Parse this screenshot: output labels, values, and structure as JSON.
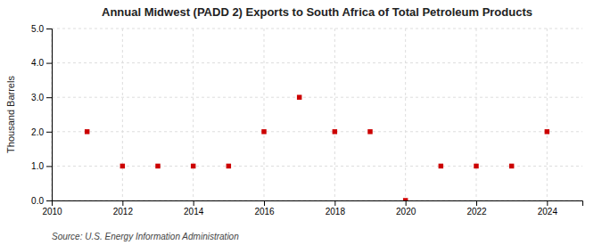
{
  "chart_data": {
    "type": "scatter",
    "title": "Annual Midwest (PADD 2) Exports to South Africa of Total Petroleum Products",
    "y_label": "Thousand Barrels",
    "source": "Source: U.S. Energy Information Administration",
    "x": [
      2011,
      2012,
      2013,
      2014,
      2015,
      2016,
      2017,
      2018,
      2019,
      2020,
      2021,
      2022,
      2023,
      2024
    ],
    "values": [
      2,
      1,
      1,
      1,
      1,
      2,
      3,
      2,
      2,
      0,
      1,
      1,
      1,
      2
    ],
    "color": "#cc0000",
    "marker": "square",
    "xlim": [
      2010,
      2025
    ],
    "ylim": [
      0.0,
      5.0
    ],
    "xticks": [
      2010,
      2012,
      2014,
      2016,
      2018,
      2020,
      2022,
      2024
    ],
    "yticks": [
      {
        "value": 0.0,
        "label": "0.0"
      },
      {
        "value": 1.0,
        "label": "1.0"
      },
      {
        "value": 2.0,
        "label": "2.0"
      },
      {
        "value": 3.0,
        "label": "3.0"
      },
      {
        "value": 4.0,
        "label": "4.0"
      },
      {
        "value": 5.0,
        "label": "5.0"
      }
    ],
    "grid": true
  }
}
